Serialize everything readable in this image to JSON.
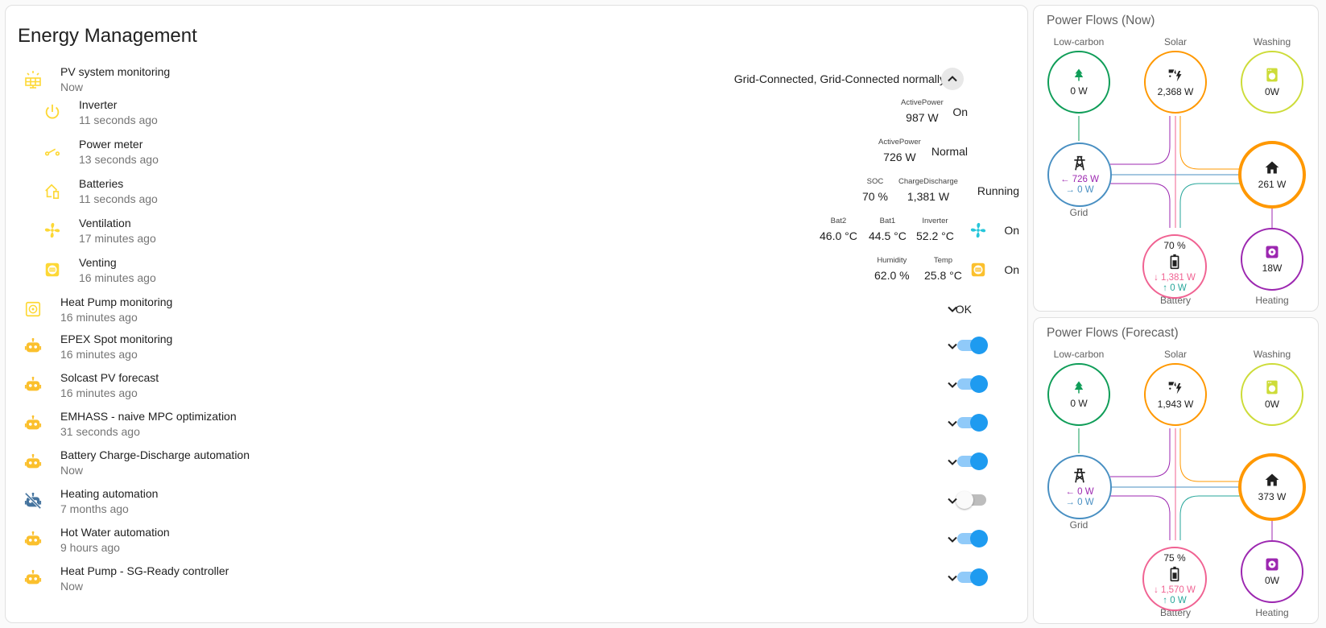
{
  "main": {
    "title": "Energy Management",
    "pv": {
      "name": "PV system monitoring",
      "time": "Now",
      "state": "Grid-Connected, Grid-Connected normally",
      "children": {
        "inverter": {
          "name": "Inverter",
          "time": "11 seconds ago",
          "attr_label": "ActivePower",
          "attr_value": "987 W",
          "state": "On"
        },
        "meter": {
          "name": "Power meter",
          "time": "13 seconds ago",
          "attr_label": "ActivePower",
          "attr_value": "726 W",
          "state": "Normal"
        },
        "batteries": {
          "name": "Batteries",
          "time": "11 seconds ago",
          "soc_label": "SOC",
          "soc_value": "70 %",
          "cd_label": "ChargeDischarge",
          "cd_value": "1,381 W",
          "state": "Running"
        },
        "ventilation": {
          "name": "Ventilation",
          "time": "17 minutes ago",
          "bat2_label": "Bat2",
          "bat2_value": "46.0 °C",
          "bat1_label": "Bat1",
          "bat1_value": "44.5 °C",
          "inv_label": "Inverter",
          "inv_value": "52.2 °C",
          "state": "On"
        },
        "venting": {
          "name": "Venting",
          "time": "16 minutes ago",
          "hum_label": "Humidity",
          "hum_value": "62.0 %",
          "temp_label": "Temp",
          "temp_value": "25.8 °C",
          "state": "On"
        }
      }
    },
    "heatpump": {
      "name": "Heat Pump monitoring",
      "time": "16 minutes ago",
      "state": "OK"
    },
    "automations": [
      {
        "name": "EPEX Spot monitoring",
        "time": "16 minutes ago",
        "on": true
      },
      {
        "name": "Solcast PV forecast",
        "time": "16 minutes ago",
        "on": true
      },
      {
        "name": "EMHASS - naive MPC optimization",
        "time": "31 seconds ago",
        "on": true
      },
      {
        "name": "Battery Charge-Discharge automation",
        "time": "Now",
        "on": true
      },
      {
        "name": "Heating automation",
        "time": "7 months ago",
        "on": false
      },
      {
        "name": "Hot Water automation",
        "time": "9 hours ago",
        "on": true
      },
      {
        "name": "Heat Pump - SG-Ready controller",
        "time": "Now",
        "on": true
      }
    ]
  },
  "flows": {
    "now": {
      "title": "Power Flows (Now)",
      "labels": {
        "lowcarbon": "Low-carbon",
        "solar": "Solar",
        "washing": "Washing",
        "grid": "Grid",
        "battery": "Battery",
        "heating": "Heating"
      },
      "lowcarbon": "0 W",
      "solar": "2,368 W",
      "washing": "0W",
      "grid_in": "726 W",
      "grid_out": "0 W",
      "home": "261 W",
      "battery_soc": "70 %",
      "battery_out": "1,381 W",
      "battery_in": "0 W",
      "heating": "18W"
    },
    "forecast": {
      "title": "Power Flows (Forecast)",
      "labels": {
        "lowcarbon": "Low-carbon",
        "solar": "Solar",
        "washing": "Washing",
        "grid": "Grid",
        "battery": "Battery",
        "heating": "Heating"
      },
      "lowcarbon": "0 W",
      "solar": "1,943 W",
      "washing": "0W",
      "grid_in": "0 W",
      "grid_out": "0 W",
      "home": "373 W",
      "battery_soc": "75 %",
      "battery_out": "1,570 W",
      "battery_in": "0 W",
      "heating": "0W"
    }
  },
  "colors": {
    "accent_yellow": "#fdd835",
    "automation_yellow": "#fbc02d",
    "toggle_on": "#1e9bf0",
    "grid": "#488fc2",
    "solar": "#ff9800",
    "battery": "#f06292",
    "lowcarbon": "#0f9d58",
    "heating": "#9c27b0",
    "washing": "#cddc39"
  }
}
